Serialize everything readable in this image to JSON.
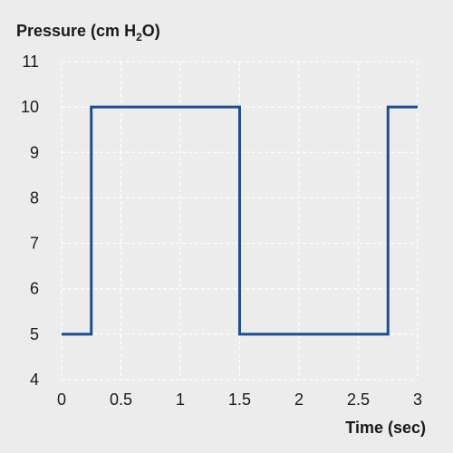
{
  "chart_data": {
    "type": "line",
    "title": "",
    "ylabel_main": "Pressure (cm H",
    "ylabel_sub": "2",
    "ylabel_tail": "O)",
    "xlabel": "Time (sec)",
    "xlim": [
      0,
      3
    ],
    "ylim": [
      4,
      11
    ],
    "xticks": [
      0,
      0.5,
      1,
      1.5,
      2,
      2.5,
      3
    ],
    "xtick_labels": [
      "0",
      "0.5",
      "1",
      "1.5",
      "2",
      "2.5",
      "3"
    ],
    "yticks": [
      4,
      5,
      6,
      7,
      8,
      9,
      10,
      11
    ],
    "ytick_labels": [
      "4",
      "5",
      "6",
      "7",
      "8",
      "9",
      "10",
      "11"
    ],
    "grid": true,
    "line_style": "step",
    "series": [
      {
        "x": [
          0,
          0.25,
          0.25,
          1.5,
          1.5,
          2.75,
          2.75,
          3.0
        ],
        "y": [
          5,
          5,
          10,
          10,
          5,
          5,
          10,
          10
        ]
      }
    ],
    "colors": {
      "background": "#ececec",
      "grid": "#ffffff",
      "line": "#1f4e8c",
      "text": "#1a1a1a"
    }
  }
}
